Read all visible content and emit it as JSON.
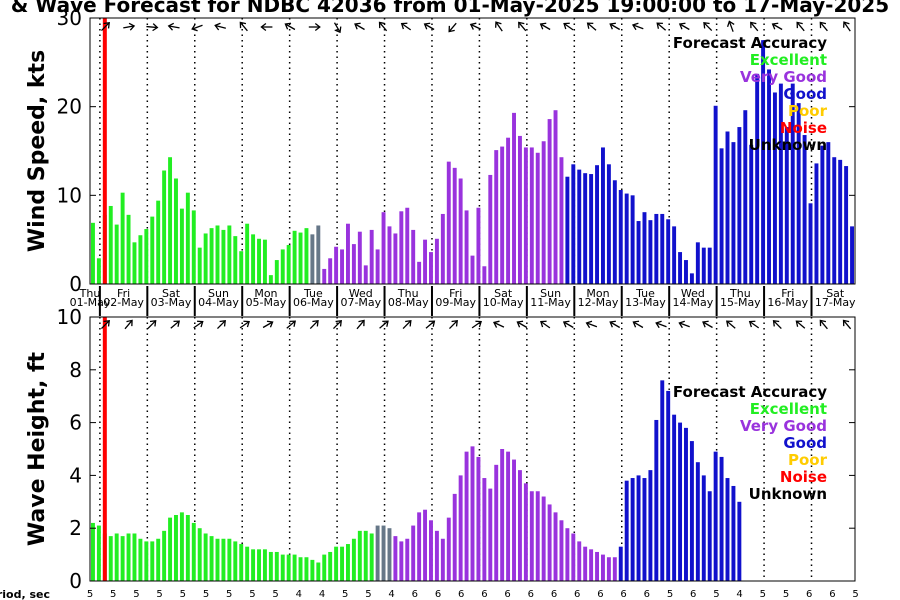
{
  "title": "& Wave Forecast for NDBC 42036 from 01-May-2025 19:00:00 to 17-May-2025",
  "legend": {
    "title": "Forecast Accuracy",
    "items": [
      {
        "label": "Excellent",
        "color": "#22ee22"
      },
      {
        "label": "Very Good",
        "color": "#9933dd"
      },
      {
        "label": "Good",
        "color": "#1111cc"
      },
      {
        "label": "Poor",
        "color": "#ffcc00"
      },
      {
        "label": "Noise",
        "color": "#ff0000"
      },
      {
        "label": "Unknown",
        "color": "#000000"
      }
    ]
  },
  "period_label": "Period, sec",
  "periods": [
    "5",
    "5",
    "5",
    "5",
    "5",
    "5",
    "5",
    "5",
    "5",
    "4",
    "4",
    "5",
    "5",
    "4",
    "6",
    "6",
    "6",
    "6",
    "6",
    "6",
    "6",
    "6",
    "6",
    "6",
    "6",
    "5",
    "6",
    "5",
    "4",
    "5",
    "5",
    "6",
    "6",
    "5"
  ],
  "day_labels": [
    {
      "day": "Thu",
      "date": "01-May"
    },
    {
      "day": "Fri",
      "date": "02-May"
    },
    {
      "day": "Sat",
      "date": "03-May"
    },
    {
      "day": "Sun",
      "date": "04-May"
    },
    {
      "day": "Mon",
      "date": "05-May"
    },
    {
      "day": "Tue",
      "date": "06-May"
    },
    {
      "day": "Wed",
      "date": "07-May"
    },
    {
      "day": "Thu",
      "date": "08-May"
    },
    {
      "day": "Fri",
      "date": "09-May"
    },
    {
      "day": "Sat",
      "date": "10-May"
    },
    {
      "day": "Sun",
      "date": "11-May"
    },
    {
      "day": "Mon",
      "date": "12-May"
    },
    {
      "day": "Tue",
      "date": "13-May"
    },
    {
      "day": "Wed",
      "date": "14-May"
    },
    {
      "day": "Thu",
      "date": "15-May"
    },
    {
      "day": "Fri",
      "date": "16-May"
    },
    {
      "day": "Sat",
      "date": "17-May"
    }
  ],
  "chart_data": [
    {
      "type": "bar",
      "ylabel": "Wind Speed, kts",
      "ylim": [
        0,
        30
      ],
      "yticks": [
        0,
        10,
        20,
        30
      ],
      "hours_per_bar": 3,
      "start_hour": 19,
      "accuracy_series": [
        {
          "name": "Excellent",
          "color": "#22ee22",
          "start": 0,
          "values": [
            6.9,
            2.9,
            7.8,
            8.8,
            6.7,
            10.3,
            7.8,
            4.7,
            5.5,
            6.2,
            7.6,
            9.4,
            12.8,
            14.3,
            11.9,
            8.5,
            10.3,
            8.3,
            4.1,
            5.7,
            6.3,
            6.6,
            6.1,
            6.6,
            5.4,
            3.7,
            6.8,
            5.6,
            5.1,
            5.0,
            1.0,
            2.7,
            3.9,
            4.4,
            6.0,
            5.8,
            6.3
          ]
        },
        {
          "name": "Unknown",
          "color": "#667788",
          "start": 37,
          "values": [
            5.6,
            6.6
          ]
        },
        {
          "name": "Very Good",
          "color": "#9933dd",
          "start": 39,
          "values": [
            1.7,
            2.9,
            4.2,
            3.9,
            6.8,
            4.5,
            5.9,
            2.1,
            6.1,
            3.9,
            8.1,
            6.5,
            5.7,
            8.2,
            8.6,
            6.1,
            2.5,
            5.0,
            3.6,
            5.1,
            7.9,
            13.8,
            13.1,
            11.9,
            8.3,
            3.2,
            8.6,
            2.0,
            12.3,
            15.1,
            15.5,
            16.5,
            19.3,
            16.7,
            15.4,
            15.4,
            14.8,
            16.1,
            18.6,
            19.6,
            14.3
          ]
        },
        {
          "name": "Good",
          "color": "#1111cc",
          "start": 80,
          "values": [
            12.1,
            13.5,
            12.9,
            12.5,
            12.4,
            13.4,
            15.4,
            13.5,
            11.7,
            10.6,
            10.2,
            10.0,
            7.1,
            8.1,
            7.2,
            7.9,
            7.9,
            7.3,
            6.5,
            3.6,
            2.7,
            1.2,
            4.7,
            4.1,
            4.1,
            20.1,
            15.3,
            17.2,
            16.0,
            17.7,
            19.6,
            15.7,
            23.7,
            27.5,
            24.2,
            21.6,
            22.6,
            17.7,
            22.6,
            20.4,
            16.8,
            9.1,
            13.6,
            15.6,
            16.0,
            14.3,
            14.0,
            13.3,
            6.5
          ]
        }
      ],
      "direction_arrows_deg": [
        45,
        80,
        95,
        280,
        250,
        285,
        320,
        270,
        300,
        90,
        150,
        300,
        320,
        305,
        300,
        220,
        295,
        325,
        320,
        300,
        305,
        310,
        300,
        290,
        310,
        300,
        315,
        340,
        320,
        300,
        320,
        320,
        325,
        330
      ]
    },
    {
      "type": "bar",
      "ylabel": "Wave Height, ft",
      "ylim": [
        0,
        10
      ],
      "yticks": [
        0,
        2,
        4,
        6,
        8,
        10
      ],
      "hours_per_bar": 3,
      "start_hour": 19,
      "accuracy_series": [
        {
          "name": "Excellent",
          "color": "#22ee22",
          "start": 0,
          "values": [
            2.2,
            2.1,
            1.8,
            1.7,
            1.8,
            1.7,
            1.8,
            1.8,
            1.6,
            1.5,
            1.5,
            1.6,
            1.9,
            2.4,
            2.5,
            2.6,
            2.5,
            2.2,
            2.0,
            1.8,
            1.7,
            1.6,
            1.6,
            1.6,
            1.5,
            1.4,
            1.3,
            1.2,
            1.2,
            1.2,
            1.1,
            1.1,
            1.0,
            1.0,
            1.0,
            0.9,
            0.9,
            0.8,
            0.7,
            1.0,
            1.1,
            1.3,
            1.3,
            1.4,
            1.6,
            1.9,
            1.9,
            1.8
          ]
        },
        {
          "name": "Unknown",
          "color": "#667788",
          "start": 48,
          "values": [
            2.1,
            2.1,
            2.0
          ]
        },
        {
          "name": "Very Good",
          "color": "#9933dd",
          "start": 51,
          "values": [
            1.7,
            1.5,
            1.6,
            2.1,
            2.6,
            2.7,
            2.3,
            1.9,
            1.6,
            2.4,
            3.3,
            4.0,
            4.9,
            5.1,
            4.7,
            3.9,
            3.5,
            4.4,
            5.0,
            4.9,
            4.6,
            4.2,
            3.7,
            3.4,
            3.4,
            3.2,
            2.9,
            2.6,
            2.3,
            2.0,
            1.8,
            1.5,
            1.3,
            1.2,
            1.1,
            1.0,
            0.9,
            0.9
          ]
        },
        {
          "name": "Good",
          "color": "#1111cc",
          "start": 89,
          "values": [
            1.3,
            3.8,
            3.9,
            4.0,
            3.9,
            4.2,
            6.1,
            7.6,
            7.2,
            6.3,
            6.0,
            5.8,
            5.3,
            4.5,
            4.0,
            3.4,
            4.9,
            4.7,
            3.9,
            3.6,
            3.0
          ]
        }
      ],
      "direction_arrows_deg": [
        45,
        40,
        45,
        50,
        55,
        45,
        55,
        60,
        50,
        45,
        45,
        40,
        50,
        45,
        50,
        45,
        55,
        295,
        300,
        305,
        300,
        290,
        300,
        300,
        290,
        290,
        300,
        310,
        305,
        315,
        310,
        320,
        320,
        330
      ]
    }
  ]
}
